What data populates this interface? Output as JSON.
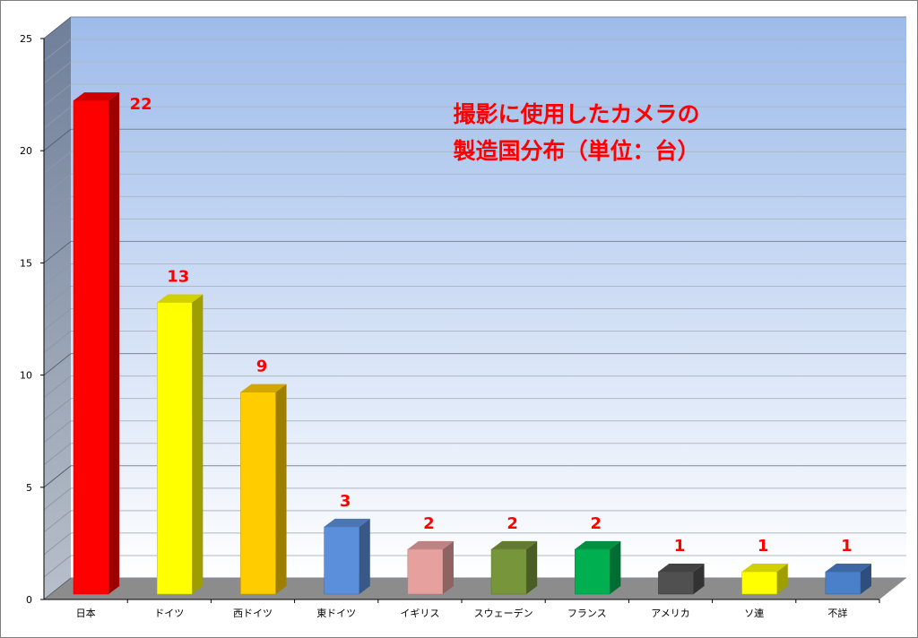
{
  "chart_data": {
    "type": "bar",
    "title_lines": [
      "撮影に使用したカメラの",
      "製造国分布（単位：台）"
    ],
    "xlabel": "",
    "ylabel": "",
    "ylim": [
      0,
      25
    ],
    "yticks": [
      0,
      5,
      10,
      15,
      20,
      25
    ],
    "grid": true,
    "three_d": true,
    "categories": [
      "日本",
      "ドイツ",
      "西ドイツ",
      "東ドイツ",
      "イギリス",
      "スウェーデン",
      "フランス",
      "アメリカ",
      "ソ連",
      "不詳"
    ],
    "values": [
      22,
      13,
      9,
      3,
      2,
      2,
      2,
      1,
      1,
      1
    ],
    "data_labels": [
      "22",
      "13",
      "9",
      "3",
      "2",
      "2",
      "2",
      "1",
      "1",
      "1"
    ],
    "bar_colors": [
      "#ff0000",
      "#ffff00",
      "#ffcc00",
      "#5b8fdb",
      "#e6a09e",
      "#77963c",
      "#00b050",
      "#505050",
      "#ffff00",
      "#4a7fc9"
    ],
    "wall_color_top": "#9dbbea",
    "wall_color_bottom": "#ffffff",
    "floor_color": "#8c8c8c"
  }
}
